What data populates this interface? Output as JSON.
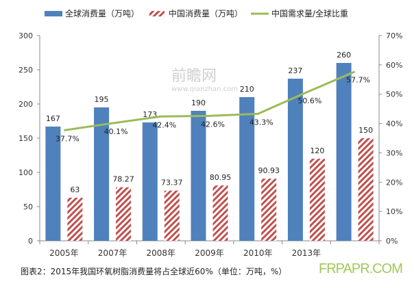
{
  "chart_data": {
    "type": "bar+line",
    "categories": [
      "2005年",
      "2007年",
      "2008年",
      "2009年",
      "2010年",
      "2013年",
      ""
    ],
    "series": [
      {
        "name": "全球消费量（万吨）",
        "kind": "bar",
        "axis": "left",
        "color": "#4f81bd",
        "values": [
          167,
          195,
          173,
          190,
          210,
          237,
          260
        ],
        "labels": [
          "167",
          "195",
          "173",
          "190",
          "210",
          "237",
          "260"
        ]
      },
      {
        "name": "中国消费量（万吨）",
        "kind": "bar-hatched",
        "axis": "left",
        "color": "#c0504d",
        "values": [
          63,
          78.27,
          73.37,
          80.95,
          90.93,
          120,
          150
        ],
        "labels": [
          "63",
          "78.27",
          "73.37",
          "80.95",
          "90.93",
          "120",
          "150"
        ]
      },
      {
        "name": "中国需求量/全球比重",
        "kind": "line",
        "axis": "right",
        "color": "#9bbb59",
        "values": [
          37.7,
          40.1,
          42.4,
          42.6,
          43.3,
          50.6,
          57.7
        ],
        "labels": [
          "37.7%",
          "40.1%",
          "42.4%",
          "42.6%",
          "43.3%",
          "50.6%",
          "57.7%"
        ]
      }
    ],
    "ylim": [
      0,
      300
    ],
    "yticks": [
      "0",
      "50",
      "100",
      "150",
      "200",
      "250",
      "300"
    ],
    "y2lim": [
      0,
      70
    ],
    "y2ticks": [
      "0%",
      "10%",
      "20%",
      "30%",
      "40%",
      "50%",
      "60%",
      "70%"
    ],
    "legend": "top",
    "grid": false
  },
  "caption": "图表2：2015年我国环氧树脂消费量将占全球近60%（单位：万吨，%）",
  "watermark": {
    "logo": "前瞻网",
    "url": "www.qianzhan.com",
    "site": "FRPAPR.COM"
  }
}
